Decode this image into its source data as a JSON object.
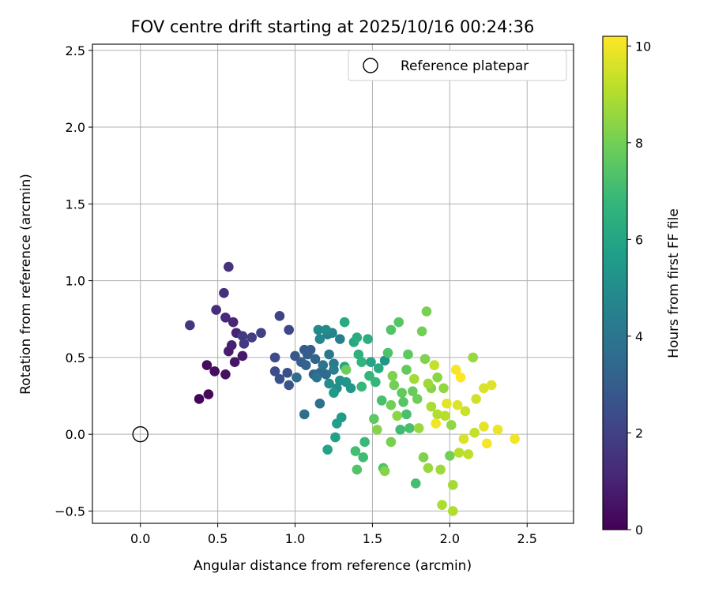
{
  "chart_data": {
    "type": "scatter",
    "title": "FOV centre drift starting at 2025/10/16 00:24:36",
    "xlabel": "Angular distance from reference (arcmin)",
    "ylabel": "Rotation from reference (arcmin)",
    "xlim": [
      -0.31,
      2.8
    ],
    "ylim": [
      -0.58,
      2.54
    ],
    "xticks": [
      0.0,
      0.5,
      1.0,
      1.5,
      2.0,
      2.5
    ],
    "xtick_labels": [
      "0.0",
      "0.5",
      "1.0",
      "1.5",
      "2.0",
      "2.5"
    ],
    "yticks": [
      -0.5,
      0.0,
      0.5,
      1.0,
      1.5,
      2.0,
      2.5
    ],
    "ytick_labels": [
      "−0.5",
      "0.0",
      "0.5",
      "1.0",
      "1.5",
      "2.0",
      "2.5"
    ],
    "grid": true,
    "legend": {
      "position": "top-right",
      "entries": [
        "Reference platepar"
      ]
    },
    "reference_point": {
      "x": 0.0,
      "y": 0.0,
      "marker": "open-circle"
    },
    "colorbar": {
      "label": "Hours from first FF file",
      "colormap": "viridis",
      "range": [
        0,
        10.2
      ],
      "ticks": [
        0,
        2,
        4,
        6,
        8,
        10
      ],
      "tick_labels": [
        "0",
        "2",
        "4",
        "6",
        "8",
        "10"
      ]
    },
    "points": [
      {
        "x": 0.38,
        "y": 0.23,
        "hours": 0.1
      },
      {
        "x": 0.44,
        "y": 0.26,
        "hours": 0.2
      },
      {
        "x": 0.43,
        "y": 0.45,
        "hours": 0.3
      },
      {
        "x": 0.48,
        "y": 0.41,
        "hours": 0.4
      },
      {
        "x": 0.55,
        "y": 0.39,
        "hours": 0.5
      },
      {
        "x": 0.61,
        "y": 0.47,
        "hours": 0.6
      },
      {
        "x": 0.66,
        "y": 0.51,
        "hours": 0.7
      },
      {
        "x": 0.57,
        "y": 0.54,
        "hours": 0.8
      },
      {
        "x": 0.59,
        "y": 0.58,
        "hours": 0.9
      },
      {
        "x": 0.62,
        "y": 0.66,
        "hours": 1.0
      },
      {
        "x": 0.6,
        "y": 0.73,
        "hours": 1.1
      },
      {
        "x": 0.55,
        "y": 0.76,
        "hours": 1.2
      },
      {
        "x": 0.49,
        "y": 0.81,
        "hours": 1.3
      },
      {
        "x": 0.54,
        "y": 0.92,
        "hours": 1.4
      },
      {
        "x": 0.57,
        "y": 1.09,
        "hours": 1.5
      },
      {
        "x": 0.32,
        "y": 0.71,
        "hours": 1.6
      },
      {
        "x": 0.66,
        "y": 0.64,
        "hours": 1.7
      },
      {
        "x": 0.67,
        "y": 0.59,
        "hours": 1.8
      },
      {
        "x": 0.72,
        "y": 0.63,
        "hours": 1.9
      },
      {
        "x": 0.78,
        "y": 0.66,
        "hours": 2.0
      },
      {
        "x": 0.9,
        "y": 0.77,
        "hours": 2.1
      },
      {
        "x": 0.96,
        "y": 0.68,
        "hours": 2.2
      },
      {
        "x": 0.87,
        "y": 0.5,
        "hours": 2.3
      },
      {
        "x": 0.87,
        "y": 0.41,
        "hours": 2.4
      },
      {
        "x": 0.95,
        "y": 0.4,
        "hours": 2.5
      },
      {
        "x": 0.9,
        "y": 0.36,
        "hours": 2.6
      },
      {
        "x": 0.96,
        "y": 0.32,
        "hours": 2.7
      },
      {
        "x": 1.0,
        "y": 0.51,
        "hours": 2.8
      },
      {
        "x": 1.06,
        "y": 0.55,
        "hours": 2.9
      },
      {
        "x": 1.1,
        "y": 0.55,
        "hours": 3.0
      },
      {
        "x": 1.04,
        "y": 0.47,
        "hours": 3.1
      },
      {
        "x": 1.07,
        "y": 0.45,
        "hours": 3.2
      },
      {
        "x": 1.12,
        "y": 0.39,
        "hours": 3.3
      },
      {
        "x": 1.16,
        "y": 0.4,
        "hours": 3.4
      },
      {
        "x": 1.2,
        "y": 0.39,
        "hours": 3.5
      },
      {
        "x": 1.01,
        "y": 0.37,
        "hours": 3.6
      },
      {
        "x": 1.06,
        "y": 0.13,
        "hours": 3.7
      },
      {
        "x": 1.16,
        "y": 0.2,
        "hours": 3.8
      },
      {
        "x": 1.14,
        "y": 0.37,
        "hours": 3.9
      },
      {
        "x": 1.18,
        "y": 0.45,
        "hours": 4.0
      },
      {
        "x": 1.22,
        "y": 0.52,
        "hours": 4.1
      },
      {
        "x": 1.25,
        "y": 0.46,
        "hours": 4.2
      },
      {
        "x": 1.25,
        "y": 0.42,
        "hours": 4.3
      },
      {
        "x": 1.29,
        "y": 0.62,
        "hours": 4.4
      },
      {
        "x": 1.21,
        "y": 0.65,
        "hours": 4.5
      },
      {
        "x": 1.24,
        "y": 0.66,
        "hours": 4.6
      },
      {
        "x": 1.16,
        "y": 0.62,
        "hours": 4.7
      },
      {
        "x": 1.15,
        "y": 0.68,
        "hours": 4.8
      },
      {
        "x": 1.2,
        "y": 0.68,
        "hours": 4.9
      },
      {
        "x": 1.22,
        "y": 0.33,
        "hours": 5.0
      },
      {
        "x": 1.27,
        "y": 0.3,
        "hours": 5.1
      },
      {
        "x": 1.29,
        "y": 0.35,
        "hours": 5.2
      },
      {
        "x": 1.33,
        "y": 0.34,
        "hours": 5.3
      },
      {
        "x": 1.36,
        "y": 0.3,
        "hours": 5.4
      },
      {
        "x": 1.25,
        "y": 0.27,
        "hours": 5.5
      },
      {
        "x": 1.3,
        "y": 0.11,
        "hours": 5.6
      },
      {
        "x": 1.27,
        "y": 0.07,
        "hours": 5.7
      },
      {
        "x": 1.26,
        "y": -0.02,
        "hours": 5.8
      },
      {
        "x": 1.21,
        "y": -0.1,
        "hours": 5.9
      },
      {
        "x": 1.32,
        "y": 0.44,
        "hours": 6.0
      },
      {
        "x": 1.38,
        "y": 0.6,
        "hours": 6.1
      },
      {
        "x": 1.32,
        "y": 0.73,
        "hours": 6.2
      },
      {
        "x": 1.4,
        "y": 0.63,
        "hours": 6.3
      },
      {
        "x": 1.47,
        "y": 0.62,
        "hours": 6.4
      },
      {
        "x": 1.41,
        "y": 0.52,
        "hours": 6.5
      },
      {
        "x": 1.43,
        "y": 0.47,
        "hours": 6.6
      },
      {
        "x": 1.48,
        "y": 0.38,
        "hours": 6.7
      },
      {
        "x": 1.52,
        "y": 0.34,
        "hours": 6.8
      },
      {
        "x": 1.45,
        "y": -0.05,
        "hours": 6.9
      },
      {
        "x": 1.44,
        "y": -0.15,
        "hours": 7.0
      },
      {
        "x": 1.39,
        "y": -0.11,
        "hours": 7.1
      },
      {
        "x": 1.56,
        "y": 0.22,
        "hours": 7.2
      },
      {
        "x": 1.6,
        "y": 0.53,
        "hours": 7.3
      },
      {
        "x": 1.62,
        "y": 0.68,
        "hours": 7.4
      },
      {
        "x": 1.67,
        "y": 0.73,
        "hours": 7.5
      },
      {
        "x": 1.73,
        "y": 0.52,
        "hours": 7.6
      },
      {
        "x": 1.72,
        "y": 0.42,
        "hours": 7.7
      },
      {
        "x": 1.76,
        "y": 0.28,
        "hours": 7.8
      },
      {
        "x": 1.79,
        "y": 0.23,
        "hours": 7.9
      },
      {
        "x": 1.82,
        "y": 0.67,
        "hours": 8.0
      },
      {
        "x": 1.85,
        "y": 0.8,
        "hours": 8.1
      },
      {
        "x": 1.84,
        "y": 0.49,
        "hours": 8.2
      },
      {
        "x": 1.88,
        "y": 0.3,
        "hours": 8.3
      },
      {
        "x": 1.92,
        "y": 0.37,
        "hours": 8.4
      },
      {
        "x": 1.96,
        "y": 0.3,
        "hours": 8.5
      },
      {
        "x": 1.86,
        "y": -0.22,
        "hours": 8.6
      },
      {
        "x": 1.94,
        "y": -0.23,
        "hours": 8.7
      },
      {
        "x": 2.02,
        "y": -0.33,
        "hours": 8.8
      },
      {
        "x": 1.95,
        "y": -0.46,
        "hours": 8.9
      },
      {
        "x": 2.02,
        "y": -0.5,
        "hours": 9.0
      },
      {
        "x": 2.06,
        "y": -0.12,
        "hours": 9.1
      },
      {
        "x": 2.12,
        "y": -0.13,
        "hours": 9.2
      },
      {
        "x": 2.16,
        "y": 0.01,
        "hours": 9.3
      },
      {
        "x": 2.1,
        "y": 0.15,
        "hours": 9.4
      },
      {
        "x": 2.17,
        "y": 0.23,
        "hours": 9.5
      },
      {
        "x": 2.22,
        "y": 0.3,
        "hours": 9.6
      },
      {
        "x": 2.27,
        "y": 0.32,
        "hours": 9.7
      },
      {
        "x": 2.22,
        "y": 0.05,
        "hours": 9.8
      },
      {
        "x": 2.31,
        "y": 0.03,
        "hours": 9.9
      },
      {
        "x": 2.42,
        "y": -0.03,
        "hours": 10.0
      },
      {
        "x": 2.24,
        "y": -0.06,
        "hours": 10.1
      },
      {
        "x": 2.04,
        "y": 0.42,
        "hours": 10.1
      },
      {
        "x": 2.07,
        "y": 0.37,
        "hours": 10.2
      },
      {
        "x": 1.91,
        "y": 0.07,
        "hours": 10.0
      },
      {
        "x": 1.98,
        "y": 0.2,
        "hours": 9.8
      },
      {
        "x": 2.05,
        "y": 0.19,
        "hours": 9.7
      },
      {
        "x": 1.7,
        "y": 0.21,
        "hours": 7.5
      },
      {
        "x": 1.68,
        "y": 0.03,
        "hours": 7.0
      },
      {
        "x": 1.74,
        "y": 0.04,
        "hours": 7.2
      },
      {
        "x": 1.63,
        "y": 0.38,
        "hours": 8.2
      },
      {
        "x": 1.77,
        "y": 0.36,
        "hours": 8.8
      },
      {
        "x": 1.62,
        "y": 0.19,
        "hours": 8.0
      },
      {
        "x": 1.66,
        "y": 0.12,
        "hours": 8.4
      },
      {
        "x": 1.58,
        "y": -0.24,
        "hours": 8.3
      },
      {
        "x": 1.62,
        "y": -0.05,
        "hours": 8.1
      },
      {
        "x": 1.8,
        "y": 0.04,
        "hours": 8.6
      },
      {
        "x": 1.83,
        "y": -0.15,
        "hours": 8.2
      },
      {
        "x": 1.88,
        "y": 0.18,
        "hours": 8.9
      },
      {
        "x": 1.92,
        "y": 0.13,
        "hours": 9.0
      },
      {
        "x": 1.97,
        "y": 0.12,
        "hours": 9.1
      },
      {
        "x": 2.01,
        "y": 0.06,
        "hours": 8.5
      },
      {
        "x": 2.09,
        "y": -0.03,
        "hours": 9.6
      },
      {
        "x": 2.15,
        "y": 0.5,
        "hours": 8.6
      },
      {
        "x": 1.53,
        "y": 0.03,
        "hours": 8.3
      },
      {
        "x": 1.51,
        "y": 0.1,
        "hours": 7.6
      },
      {
        "x": 1.4,
        "y": -0.23,
        "hours": 7.4
      },
      {
        "x": 1.57,
        "y": -0.22,
        "hours": 7.3
      },
      {
        "x": 1.78,
        "y": -0.32,
        "hours": 7.1
      },
      {
        "x": 1.33,
        "y": 0.42,
        "hours": 7.9
      },
      {
        "x": 1.43,
        "y": 0.31,
        "hours": 6.8
      },
      {
        "x": 1.54,
        "y": 0.43,
        "hours": 6.2
      },
      {
        "x": 1.58,
        "y": 0.48,
        "hours": 5.3
      },
      {
        "x": 1.64,
        "y": 0.32,
        "hours": 8.0
      },
      {
        "x": 1.69,
        "y": 0.27,
        "hours": 7.7
      },
      {
        "x": 1.72,
        "y": 0.13,
        "hours": 7.2
      },
      {
        "x": 1.86,
        "y": 0.33,
        "hours": 8.7
      },
      {
        "x": 1.9,
        "y": 0.45,
        "hours": 9.3
      },
      {
        "x": 2.0,
        "y": -0.14,
        "hours": 8.0
      },
      {
        "x": 1.49,
        "y": 0.47,
        "hours": 5.9
      },
      {
        "x": 1.13,
        "y": 0.49,
        "hours": 3.3
      },
      {
        "x": 1.08,
        "y": 0.52,
        "hours": 3.0
      }
    ]
  }
}
